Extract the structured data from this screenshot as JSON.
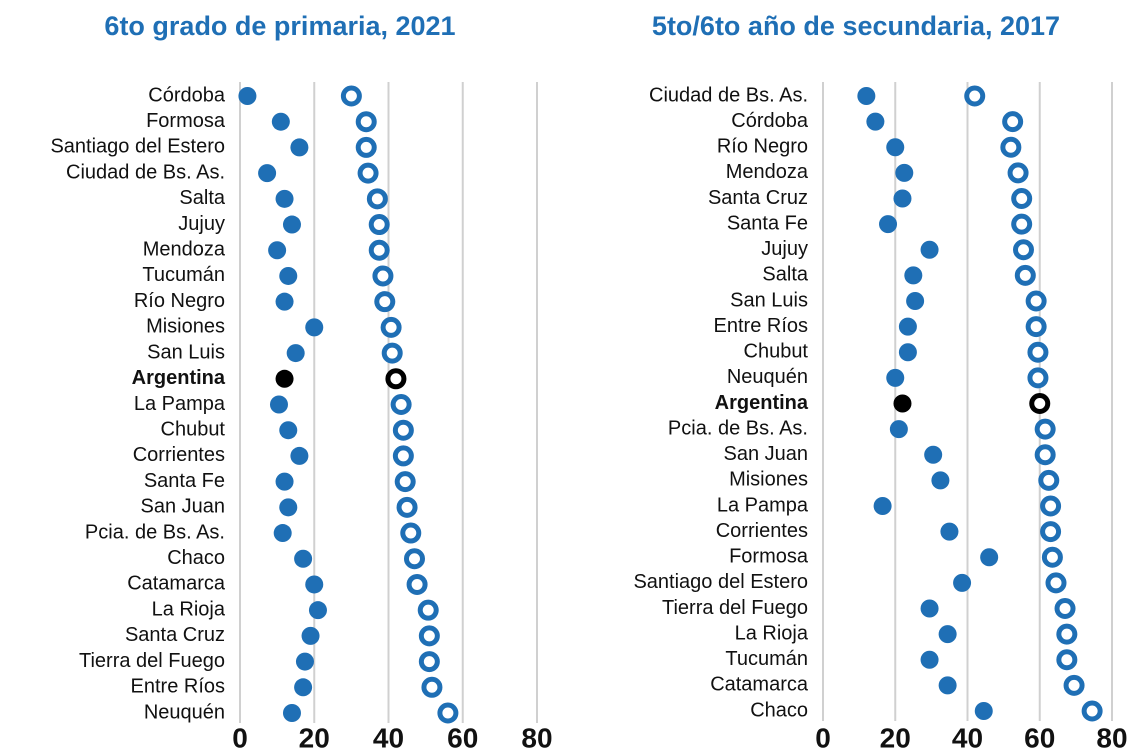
{
  "chart_data": [
    {
      "type": "dot",
      "title": "6to grado de primaria, 2021",
      "categories": [
        "Córdoba",
        "Formosa",
        "Santiago del Estero",
        "Ciudad de Bs. As.",
        "Salta",
        "Jujuy",
        "Mendoza",
        "Tucumán",
        "Río Negro",
        "Misiones",
        "San Luis",
        "Argentina",
        "La Pampa",
        "Chubut",
        "Corrientes",
        "Santa Fe",
        "San Juan",
        "Pcia. de Bs. As.",
        "Chaco",
        "Catamarca",
        "La Rioja",
        "Santa Cruz",
        "Tierra del Fuego",
        "Entre Ríos",
        "Neuquén"
      ],
      "series": [
        {
          "color": "#1f6fb5",
          "marker": "filled",
          "values": [
            2,
            11,
            16,
            7.3,
            12,
            14,
            10,
            13,
            12,
            20,
            15,
            12,
            10.5,
            13,
            16,
            12,
            13,
            11.5,
            17,
            20,
            21,
            19,
            17.5,
            17,
            14
          ]
        },
        {
          "color": "#1f6fb5",
          "marker": "ring",
          "values": [
            30,
            34,
            34,
            34.5,
            37,
            37.5,
            37.5,
            38.5,
            39,
            40.7,
            41,
            42,
            43.4,
            44,
            44,
            44.5,
            45,
            46,
            47,
            47.7,
            50.7,
            51,
            51,
            51.7,
            56
          ]
        }
      ],
      "highlight": "Argentina",
      "highlight_color": "#000000",
      "xlim": [
        0,
        80
      ],
      "xticks": [
        0,
        20,
        40,
        60,
        80
      ],
      "grid": true
    },
    {
      "type": "dot",
      "title": "5to/6to año de secundaria, 2017",
      "categories": [
        "Ciudad de Bs. As.",
        "Córdoba",
        "Río Negro",
        "Mendoza",
        "Santa Cruz",
        "Santa Fe",
        "Jujuy",
        "Salta",
        "San Luis",
        "Entre Ríos",
        "Chubut",
        "Neuquén",
        "Argentina",
        "Pcia. de Bs. As.",
        "San Juan",
        "Misiones",
        "La Pampa",
        "Corrientes",
        "Formosa",
        "Santiago del Estero",
        "Tierra del Fuego",
        "La Rioja",
        "Tucumán",
        "Catamarca",
        "Chaco"
      ],
      "series": [
        {
          "color": "#1f6fb5",
          "marker": "filled",
          "values": [
            12,
            14.5,
            20,
            22.5,
            22,
            18,
            29.5,
            25,
            25.5,
            23.5,
            23.5,
            20,
            22,
            21,
            30.5,
            32.5,
            16.5,
            35,
            46,
            38.5,
            29.5,
            34.5,
            29.5,
            34.5,
            44.5
          ]
        },
        {
          "color": "#1f6fb5",
          "marker": "ring",
          "values": [
            42,
            52.5,
            52,
            54,
            55,
            55,
            55.5,
            56,
            59,
            59,
            59.5,
            59.5,
            60,
            61.5,
            61.5,
            62.5,
            63,
            63,
            63.5,
            64.5,
            67,
            67.5,
            67.5,
            69.5,
            74.5
          ]
        }
      ],
      "highlight": "Argentina",
      "highlight_color": "#000000",
      "xlim": [
        0,
        80
      ],
      "xticks": [
        0,
        20,
        40,
        60,
        80
      ],
      "grid": true
    }
  ]
}
